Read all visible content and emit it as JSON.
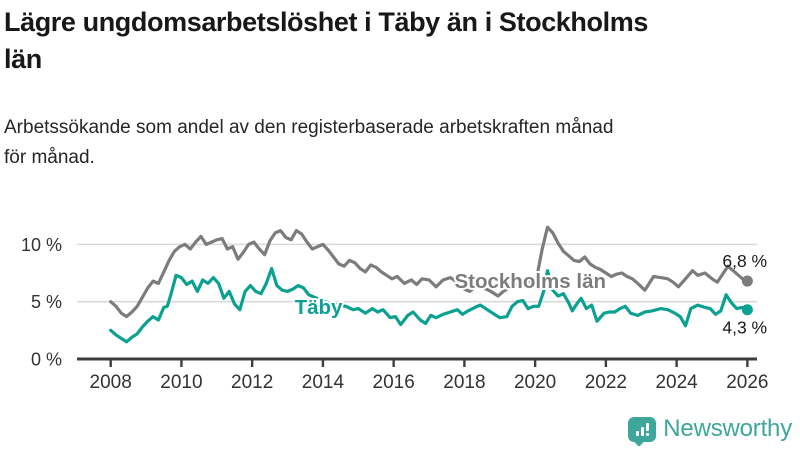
{
  "header": {
    "title": "Lägre ungdomsarbetslöshet i Täby än i Stockholms län",
    "title_lines": [
      "Lägre ungdomsarbetslöshet i Täby än i Stockholms",
      "län"
    ],
    "subtitle": "Arbetssökande som andel av den registerbaserade arbetskraften månad för månad.",
    "subtitle_lines": [
      "Arbetssökande som andel av den registerbaserade arbetskraften månad",
      "för månad."
    ]
  },
  "footer": {
    "brand": "Newsworthy",
    "logo_icon": "bar-chart-speech-bubble",
    "brand_color": "#3EA69B"
  },
  "chart_data": {
    "type": "line",
    "title": "Lägre ungdomsarbetslöshet i Täby än i Stockholms län",
    "subtitle": "Arbetssökande som andel av den registerbaserade arbetskraften månad för månad.",
    "unit": "%",
    "xlim": [
      2007.05,
      2026.35
    ],
    "ylim": [
      0,
      11.8
    ],
    "grid": "horizontal",
    "x_ticks": [
      2008,
      2010,
      2012,
      2014,
      2016,
      2018,
      2020,
      2022,
      2024,
      2026
    ],
    "y_ticks": [
      {
        "value": 0,
        "label": "0 %"
      },
      {
        "value": 5,
        "label": "5 %"
      },
      {
        "value": 10,
        "label": "10 %"
      }
    ],
    "axis_color": "#3d3d3d",
    "grid_color": "#d9d9d9",
    "tick_label_color": "#333333",
    "end_label_color": "#1a1a1a",
    "legend_position": "inline-on-lines",
    "series": [
      {
        "name": "Stockholms län",
        "color": "#7c7c7c",
        "end_label": "6,8 %",
        "end_value": 6.8,
        "label_anchor": {
          "x": 2017.72,
          "y": 6.8
        },
        "end_label_side": "above",
        "points": [
          [
            2008.0,
            5.0
          ],
          [
            2008.15,
            4.6
          ],
          [
            2008.3,
            4.0
          ],
          [
            2008.45,
            3.7
          ],
          [
            2008.6,
            4.1
          ],
          [
            2008.75,
            4.6
          ],
          [
            2008.9,
            5.4
          ],
          [
            2009.05,
            6.2
          ],
          [
            2009.2,
            6.8
          ],
          [
            2009.35,
            6.6
          ],
          [
            2009.5,
            7.6
          ],
          [
            2009.65,
            8.6
          ],
          [
            2009.8,
            9.4
          ],
          [
            2009.95,
            9.8
          ],
          [
            2010.1,
            10.0
          ],
          [
            2010.25,
            9.6
          ],
          [
            2010.4,
            10.2
          ],
          [
            2010.55,
            10.7
          ],
          [
            2010.7,
            10.0
          ],
          [
            2010.85,
            10.2
          ],
          [
            2011.0,
            10.4
          ],
          [
            2011.15,
            10.5
          ],
          [
            2011.3,
            9.6
          ],
          [
            2011.45,
            9.8
          ],
          [
            2011.6,
            8.7
          ],
          [
            2011.75,
            9.3
          ],
          [
            2011.9,
            10.0
          ],
          [
            2012.05,
            10.2
          ],
          [
            2012.2,
            9.6
          ],
          [
            2012.35,
            9.1
          ],
          [
            2012.5,
            10.3
          ],
          [
            2012.65,
            11.0
          ],
          [
            2012.8,
            11.2
          ],
          [
            2012.95,
            10.6
          ],
          [
            2013.1,
            10.4
          ],
          [
            2013.25,
            11.2
          ],
          [
            2013.4,
            10.9
          ],
          [
            2013.55,
            10.2
          ],
          [
            2013.7,
            9.6
          ],
          [
            2013.85,
            9.8
          ],
          [
            2014.0,
            10.0
          ],
          [
            2014.15,
            9.5
          ],
          [
            2014.3,
            8.9
          ],
          [
            2014.45,
            8.3
          ],
          [
            2014.6,
            8.1
          ],
          [
            2014.75,
            8.6
          ],
          [
            2014.9,
            8.4
          ],
          [
            2015.05,
            7.9
          ],
          [
            2015.2,
            7.6
          ],
          [
            2015.35,
            8.2
          ],
          [
            2015.5,
            8.0
          ],
          [
            2015.65,
            7.6
          ],
          [
            2015.8,
            7.3
          ],
          [
            2015.95,
            7.0
          ],
          [
            2016.1,
            7.2
          ],
          [
            2016.3,
            6.6
          ],
          [
            2016.5,
            6.9
          ],
          [
            2016.65,
            6.5
          ],
          [
            2016.8,
            7.0
          ],
          [
            2017.0,
            6.9
          ],
          [
            2017.2,
            6.3
          ],
          [
            2017.4,
            6.9
          ],
          [
            2017.6,
            7.1
          ],
          [
            2017.8,
            6.7
          ],
          [
            2018.0,
            6.1
          ],
          [
            2018.15,
            5.9
          ],
          [
            2018.35,
            6.4
          ],
          [
            2018.55,
            6.2
          ],
          [
            2018.75,
            5.9
          ],
          [
            2018.95,
            5.5
          ],
          [
            2019.1,
            5.9
          ],
          [
            2019.3,
            6.3
          ],
          [
            2019.5,
            6.5
          ],
          [
            2019.7,
            6.8
          ],
          [
            2019.9,
            6.8
          ],
          [
            2020.05,
            7.2
          ],
          [
            2020.2,
            9.6
          ],
          [
            2020.35,
            11.5
          ],
          [
            2020.5,
            11.0
          ],
          [
            2020.65,
            10.1
          ],
          [
            2020.8,
            9.4
          ],
          [
            2020.95,
            9.0
          ],
          [
            2021.1,
            8.6
          ],
          [
            2021.25,
            8.5
          ],
          [
            2021.4,
            8.9
          ],
          [
            2021.55,
            8.3
          ],
          [
            2021.7,
            8.0
          ],
          [
            2021.85,
            7.8
          ],
          [
            2022.0,
            7.5
          ],
          [
            2022.15,
            7.2
          ],
          [
            2022.3,
            7.4
          ],
          [
            2022.45,
            7.5
          ],
          [
            2022.6,
            7.2
          ],
          [
            2022.75,
            7.0
          ],
          [
            2022.9,
            6.6
          ],
          [
            2023.1,
            6.0
          ],
          [
            2023.35,
            7.2
          ],
          [
            2023.55,
            7.1
          ],
          [
            2023.75,
            7.0
          ],
          [
            2023.9,
            6.7
          ],
          [
            2024.05,
            6.3
          ],
          [
            2024.25,
            7.0
          ],
          [
            2024.45,
            7.7
          ],
          [
            2024.6,
            7.3
          ],
          [
            2024.8,
            7.5
          ],
          [
            2025.0,
            7.0
          ],
          [
            2025.15,
            6.7
          ],
          [
            2025.3,
            7.4
          ],
          [
            2025.45,
            8.1
          ],
          [
            2025.6,
            7.7
          ],
          [
            2025.75,
            7.3
          ],
          [
            2025.9,
            6.9
          ],
          [
            2026.0,
            6.8
          ]
        ]
      },
      {
        "name": "Täby",
        "color": "#0ba192",
        "end_label": "4,3 %",
        "end_value": 4.3,
        "label_anchor": {
          "x": 2013.2,
          "y": 4.55
        },
        "end_label_side": "below",
        "points": [
          [
            2008.0,
            2.5
          ],
          [
            2008.15,
            2.1
          ],
          [
            2008.3,
            1.8
          ],
          [
            2008.45,
            1.5
          ],
          [
            2008.6,
            1.9
          ],
          [
            2008.75,
            2.2
          ],
          [
            2008.9,
            2.8
          ],
          [
            2009.05,
            3.3
          ],
          [
            2009.2,
            3.7
          ],
          [
            2009.35,
            3.4
          ],
          [
            2009.5,
            4.5
          ],
          [
            2009.6,
            4.6
          ],
          [
            2009.7,
            5.6
          ],
          [
            2009.85,
            7.3
          ],
          [
            2010.0,
            7.1
          ],
          [
            2010.15,
            6.5
          ],
          [
            2010.3,
            6.8
          ],
          [
            2010.45,
            5.9
          ],
          [
            2010.6,
            6.9
          ],
          [
            2010.75,
            6.6
          ],
          [
            2010.9,
            7.1
          ],
          [
            2011.05,
            6.6
          ],
          [
            2011.2,
            5.3
          ],
          [
            2011.35,
            5.9
          ],
          [
            2011.5,
            4.8
          ],
          [
            2011.65,
            4.3
          ],
          [
            2011.8,
            5.9
          ],
          [
            2011.95,
            6.4
          ],
          [
            2012.1,
            5.9
          ],
          [
            2012.25,
            5.7
          ],
          [
            2012.4,
            6.6
          ],
          [
            2012.55,
            7.9
          ],
          [
            2012.7,
            6.4
          ],
          [
            2012.85,
            6.0
          ],
          [
            2013.0,
            5.9
          ],
          [
            2013.15,
            6.1
          ],
          [
            2013.3,
            6.4
          ],
          [
            2013.45,
            6.2
          ],
          [
            2013.6,
            5.6
          ],
          [
            2013.75,
            5.4
          ],
          [
            2013.9,
            5.2
          ],
          [
            2014.05,
            5.0
          ],
          [
            2014.25,
            4.8
          ],
          [
            2014.45,
            4.7
          ],
          [
            2014.65,
            4.6
          ],
          [
            2014.85,
            4.3
          ],
          [
            2015.0,
            4.4
          ],
          [
            2015.2,
            4.0
          ],
          [
            2015.4,
            4.4
          ],
          [
            2015.55,
            4.1
          ],
          [
            2015.7,
            4.3
          ],
          [
            2015.9,
            3.6
          ],
          [
            2016.05,
            3.7
          ],
          [
            2016.2,
            3.0
          ],
          [
            2016.4,
            3.8
          ],
          [
            2016.55,
            4.1
          ],
          [
            2016.75,
            3.4
          ],
          [
            2016.9,
            3.1
          ],
          [
            2017.05,
            3.8
          ],
          [
            2017.2,
            3.6
          ],
          [
            2017.4,
            3.9
          ],
          [
            2017.6,
            4.1
          ],
          [
            2017.8,
            4.3
          ],
          [
            2017.95,
            3.9
          ],
          [
            2018.1,
            4.2
          ],
          [
            2018.3,
            4.5
          ],
          [
            2018.45,
            4.7
          ],
          [
            2018.6,
            4.4
          ],
          [
            2018.8,
            4.0
          ],
          [
            2019.0,
            3.6
          ],
          [
            2019.2,
            3.7
          ],
          [
            2019.35,
            4.6
          ],
          [
            2019.5,
            5.0
          ],
          [
            2019.65,
            5.1
          ],
          [
            2019.8,
            4.4
          ],
          [
            2019.95,
            4.6
          ],
          [
            2020.1,
            4.6
          ],
          [
            2020.25,
            6.0
          ],
          [
            2020.35,
            7.7
          ],
          [
            2020.5,
            6.0
          ],
          [
            2020.65,
            5.5
          ],
          [
            2020.8,
            5.7
          ],
          [
            2020.95,
            4.9
          ],
          [
            2021.05,
            4.2
          ],
          [
            2021.2,
            4.9
          ],
          [
            2021.3,
            5.3
          ],
          [
            2021.45,
            4.4
          ],
          [
            2021.6,
            4.7
          ],
          [
            2021.75,
            3.3
          ],
          [
            2021.95,
            4.0
          ],
          [
            2022.1,
            4.1
          ],
          [
            2022.25,
            4.1
          ],
          [
            2022.4,
            4.4
          ],
          [
            2022.55,
            4.6
          ],
          [
            2022.7,
            4.0
          ],
          [
            2022.9,
            3.8
          ],
          [
            2023.1,
            4.1
          ],
          [
            2023.3,
            4.2
          ],
          [
            2023.55,
            4.4
          ],
          [
            2023.75,
            4.3
          ],
          [
            2023.95,
            4.0
          ],
          [
            2024.1,
            3.7
          ],
          [
            2024.25,
            2.9
          ],
          [
            2024.4,
            4.4
          ],
          [
            2024.6,
            4.7
          ],
          [
            2024.8,
            4.5
          ],
          [
            2024.95,
            4.4
          ],
          [
            2025.1,
            3.9
          ],
          [
            2025.25,
            4.2
          ],
          [
            2025.4,
            5.6
          ],
          [
            2025.55,
            4.9
          ],
          [
            2025.7,
            4.4
          ],
          [
            2025.85,
            4.5
          ],
          [
            2026.0,
            4.3
          ]
        ]
      }
    ]
  }
}
